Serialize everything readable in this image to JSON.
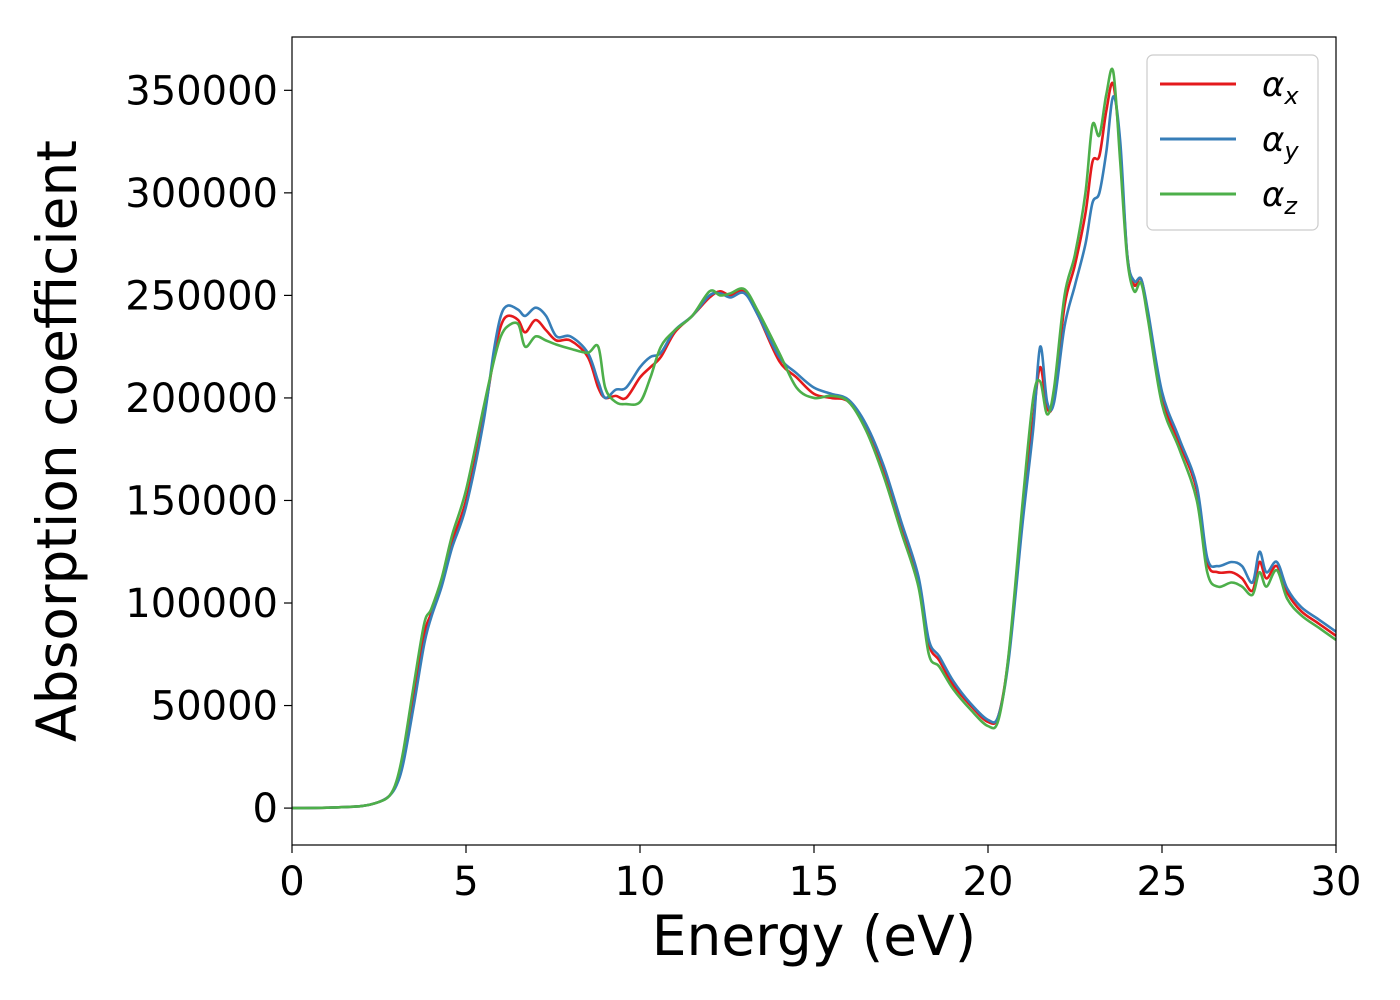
{
  "chart_data": {
    "type": "line",
    "title": "",
    "xlabel": "Energy (eV)",
    "ylabel": "Absorption coefficient",
    "xlim": [
      0,
      30
    ],
    "ylim": [
      -18000,
      376000
    ],
    "xticks": [
      0,
      5,
      10,
      15,
      20,
      25,
      30
    ],
    "xtick_labels": [
      "0",
      "5",
      "10",
      "15",
      "20",
      "25",
      "30"
    ],
    "yticks": [
      0,
      50000,
      100000,
      150000,
      200000,
      250000,
      300000,
      350000
    ],
    "ytick_labels": [
      "0",
      "50000",
      "100000",
      "150000",
      "200000",
      "250000",
      "300000",
      "350000"
    ],
    "grid": false,
    "legend_placement": "top-right",
    "x": [
      0,
      1,
      2,
      2.5,
      2.8,
      3.0,
      3.2,
      3.5,
      3.8,
      4.0,
      4.3,
      4.6,
      5.0,
      5.5,
      5.8,
      6.0,
      6.2,
      6.5,
      6.7,
      7.0,
      7.3,
      7.6,
      8.0,
      8.5,
      8.8,
      9.0,
      9.3,
      9.6,
      10.0,
      10.3,
      10.6,
      11.0,
      11.5,
      12.0,
      12.3,
      12.6,
      13.0,
      13.4,
      14.0,
      14.5,
      15.0,
      15.5,
      16.0,
      16.5,
      17.0,
      17.5,
      18.0,
      18.3,
      18.6,
      19.0,
      19.5,
      20.0,
      20.3,
      20.6,
      21.0,
      21.3,
      21.5,
      21.7,
      21.9,
      22.2,
      22.5,
      22.8,
      23.0,
      23.2,
      23.4,
      23.6,
      23.8,
      24.0,
      24.2,
      24.4,
      24.6,
      25.0,
      25.5,
      26.0,
      26.3,
      26.6,
      27.0,
      27.3,
      27.6,
      27.8,
      28.0,
      28.3,
      28.6,
      29.0,
      29.5,
      30.0
    ],
    "series": [
      {
        "name": "α_x",
        "name_base": "α",
        "name_sub": "x",
        "color": "#e41a1c",
        "values": [
          0,
          200,
          1000,
          3000,
          6000,
          12000,
          25000,
          55000,
          85000,
          95000,
          110000,
          130000,
          150000,
          190000,
          220000,
          235000,
          240000,
          238000,
          232000,
          238000,
          233000,
          228000,
          228000,
          220000,
          205000,
          200000,
          201000,
          200000,
          210000,
          215000,
          220000,
          232000,
          240000,
          249000,
          252000,
          250000,
          252000,
          240000,
          218000,
          210000,
          202000,
          200000,
          198000,
          185000,
          165000,
          138000,
          110000,
          80000,
          72000,
          60000,
          50000,
          42000,
          45000,
          75000,
          145000,
          190000,
          215000,
          195000,
          200000,
          245000,
          265000,
          290000,
          315000,
          318000,
          340000,
          353000,
          320000,
          270000,
          255000,
          258000,
          240000,
          200000,
          178000,
          155000,
          120000,
          115000,
          115000,
          112000,
          106000,
          120000,
          112000,
          118000,
          105000,
          96000,
          90000,
          84000
        ]
      },
      {
        "name": "α_y",
        "name_base": "α",
        "name_sub": "y",
        "color": "#377eb8",
        "values": [
          0,
          200,
          1000,
          3000,
          6000,
          11000,
          22000,
          50000,
          80000,
          93000,
          108000,
          127000,
          147000,
          188000,
          223000,
          240000,
          245000,
          243000,
          240000,
          244000,
          240000,
          230000,
          230000,
          222000,
          208000,
          200000,
          204000,
          205000,
          215000,
          220000,
          222000,
          233000,
          240000,
          250000,
          251000,
          249000,
          251000,
          240000,
          220000,
          212000,
          205000,
          202000,
          199000,
          187000,
          167000,
          140000,
          113000,
          82000,
          74000,
          62000,
          51000,
          43000,
          45000,
          73000,
          140000,
          185000,
          225000,
          198000,
          198000,
          235000,
          255000,
          275000,
          295000,
          300000,
          320000,
          347000,
          325000,
          270000,
          257000,
          258000,
          242000,
          203000,
          180000,
          157000,
          122000,
          118000,
          120000,
          118000,
          110000,
          125000,
          115000,
          120000,
          107000,
          98000,
          92000,
          86000
        ]
      },
      {
        "name": "α_z",
        "name_base": "α",
        "name_sub": "z",
        "color": "#4daf4a",
        "values": [
          0,
          200,
          1000,
          3000,
          6000,
          13000,
          28000,
          60000,
          90000,
          97000,
          112000,
          133000,
          155000,
          195000,
          218000,
          230000,
          235000,
          236000,
          225000,
          230000,
          228000,
          226000,
          224000,
          222000,
          225000,
          205000,
          198000,
          197000,
          198000,
          210000,
          225000,
          233000,
          240000,
          252000,
          250000,
          251000,
          253000,
          242000,
          222000,
          205000,
          200000,
          201000,
          198000,
          184000,
          162000,
          135000,
          108000,
          75000,
          69000,
          58000,
          48000,
          40000,
          43000,
          76000,
          150000,
          200000,
          208000,
          192000,
          205000,
          250000,
          270000,
          300000,
          333000,
          328000,
          348000,
          359000,
          315000,
          268000,
          252000,
          256000,
          238000,
          197000,
          175000,
          150000,
          115000,
          108000,
          110000,
          108000,
          104000,
          115000,
          108000,
          116000,
          102000,
          94000,
          88000,
          82000
        ]
      }
    ]
  }
}
